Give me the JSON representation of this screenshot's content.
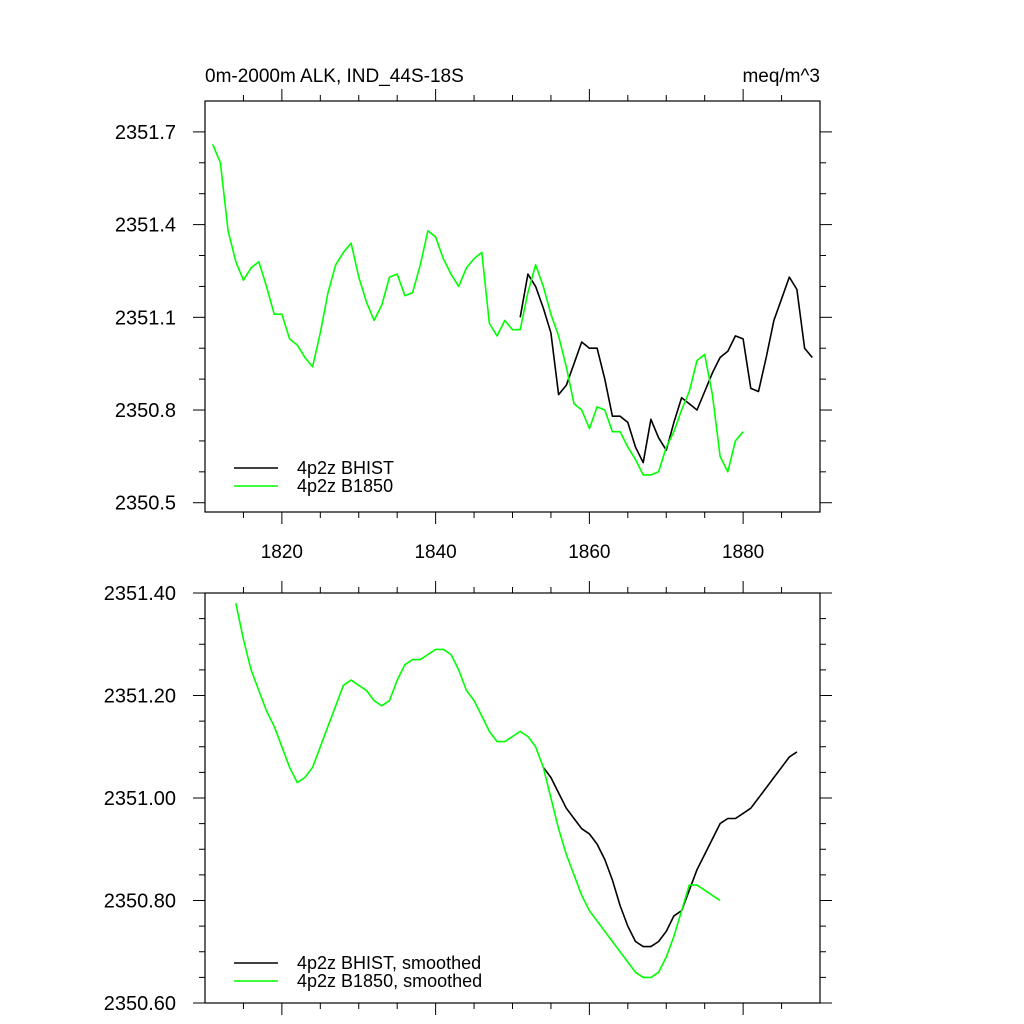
{
  "chart_data": [
    {
      "type": "line",
      "title": "0m-2000m ALK, IND_44S-18S",
      "units": "meq/m^3",
      "xlabel": "",
      "ylabel": "",
      "xlim": [
        1810,
        1890
      ],
      "ylim": [
        2350.47,
        2351.8
      ],
      "x_ticks": [
        1820,
        1840,
        1860,
        1880
      ],
      "y_ticks": [
        2350.5,
        2350.8,
        2351.1,
        2351.4,
        2351.7
      ],
      "y_tick_labels": [
        "2350.5",
        "2350.8",
        "2351.1",
        "2351.4",
        "2351.7"
      ],
      "legend": "bottom-left",
      "series": [
        {
          "name": "4p2z BHIST",
          "color": "#000000",
          "x": [
            1851,
            1852,
            1853,
            1854,
            1855,
            1856,
            1857,
            1858,
            1859,
            1860,
            1861,
            1862,
            1863,
            1864,
            1865,
            1866,
            1867,
            1868,
            1869,
            1870,
            1871,
            1872,
            1873,
            1874,
            1875,
            1876,
            1877,
            1878,
            1879,
            1880,
            1881,
            1882,
            1883,
            1884,
            1885,
            1886,
            1887,
            1888,
            1889
          ],
          "values": [
            2351.1,
            2351.24,
            2351.2,
            2351.13,
            2351.05,
            2350.85,
            2350.88,
            2350.95,
            2351.02,
            2351.0,
            2351.0,
            2350.9,
            2350.78,
            2350.78,
            2350.76,
            2350.68,
            2350.63,
            2350.77,
            2350.71,
            2350.67,
            2350.76,
            2350.84,
            2350.82,
            2350.8,
            2350.86,
            2350.92,
            2350.97,
            2350.99,
            2351.04,
            2351.03,
            2350.87,
            2350.86,
            2350.97,
            2351.09,
            2351.16,
            2351.23,
            2351.19,
            2351.0,
            2350.97
          ]
        },
        {
          "name": "4p2z B1850",
          "color": "#00ff00",
          "x": [
            1811,
            1812,
            1813,
            1814,
            1815,
            1816,
            1817,
            1818,
            1819,
            1820,
            1821,
            1822,
            1823,
            1824,
            1825,
            1826,
            1827,
            1828,
            1829,
            1830,
            1831,
            1832,
            1833,
            1834,
            1835,
            1836,
            1837,
            1838,
            1839,
            1840,
            1841,
            1842,
            1843,
            1844,
            1845,
            1846,
            1847,
            1848,
            1849,
            1850,
            1851,
            1852,
            1853,
            1854,
            1855,
            1856,
            1857,
            1858,
            1859,
            1860,
            1861,
            1862,
            1863,
            1864,
            1865,
            1866,
            1867,
            1868,
            1869,
            1870,
            1871,
            1872,
            1873,
            1874,
            1875,
            1876,
            1877,
            1878,
            1879,
            1880
          ],
          "values": [
            2351.66,
            2351.6,
            2351.38,
            2351.28,
            2351.22,
            2351.26,
            2351.28,
            2351.2,
            2351.11,
            2351.11,
            2351.03,
            2351.01,
            2350.97,
            2350.94,
            2351.05,
            2351.18,
            2351.27,
            2351.31,
            2351.34,
            2351.23,
            2351.15,
            2351.09,
            2351.14,
            2351.23,
            2351.24,
            2351.17,
            2351.18,
            2351.27,
            2351.38,
            2351.36,
            2351.29,
            2351.24,
            2351.2,
            2351.26,
            2351.29,
            2351.31,
            2351.08,
            2351.04,
            2351.09,
            2351.06,
            2351.06,
            2351.18,
            2351.27,
            2351.2,
            2351.11,
            2351.04,
            2350.94,
            2350.82,
            2350.8,
            2350.74,
            2350.81,
            2350.8,
            2350.73,
            2350.73,
            2350.68,
            2350.64,
            2350.59,
            2350.59,
            2350.6,
            2350.68,
            2350.73,
            2350.8,
            2350.86,
            2350.96,
            2350.98,
            2350.85,
            2350.65,
            2350.6,
            2350.7,
            2350.73
          ]
        }
      ]
    },
    {
      "type": "line",
      "title": "",
      "xlabel": "",
      "ylabel": "",
      "xlim": [
        1810,
        1890
      ],
      "ylim": [
        2350.6,
        2351.4
      ],
      "x_ticks": [
        1820,
        1840,
        1860,
        1880
      ],
      "y_ticks": [
        2350.6,
        2350.8,
        2351.0,
        2351.2,
        2351.4
      ],
      "y_tick_labels": [
        "2350.60",
        "2350.80",
        "2351.00",
        "2351.20",
        "2351.40"
      ],
      "legend": "bottom-left",
      "series": [
        {
          "name": "4p2z BHIST, smoothed",
          "color": "#000000",
          "x": [
            1854,
            1855,
            1856,
            1857,
            1858,
            1859,
            1860,
            1861,
            1862,
            1863,
            1864,
            1865,
            1866,
            1867,
            1868,
            1869,
            1870,
            1871,
            1872,
            1873,
            1874,
            1875,
            1876,
            1877,
            1878,
            1879,
            1880,
            1881,
            1882,
            1883,
            1884,
            1885,
            1886,
            1887
          ],
          "values": [
            2351.06,
            2351.04,
            2351.01,
            2350.98,
            2350.96,
            2350.94,
            2350.93,
            2350.91,
            2350.88,
            2350.84,
            2350.79,
            2350.75,
            2350.72,
            2350.71,
            2350.71,
            2350.72,
            2350.74,
            2350.77,
            2350.78,
            2350.82,
            2350.86,
            2350.89,
            2350.92,
            2350.95,
            2350.96,
            2350.96,
            2350.97,
            2350.98,
            2351.0,
            2351.02,
            2351.04,
            2351.06,
            2351.08,
            2351.09
          ]
        },
        {
          "name": "4p2z B1850, smoothed",
          "color": "#00ff00",
          "x": [
            1814,
            1815,
            1816,
            1817,
            1818,
            1819,
            1820,
            1821,
            1822,
            1823,
            1824,
            1825,
            1826,
            1827,
            1828,
            1829,
            1830,
            1831,
            1832,
            1833,
            1834,
            1835,
            1836,
            1837,
            1838,
            1839,
            1840,
            1841,
            1842,
            1843,
            1844,
            1845,
            1846,
            1847,
            1848,
            1849,
            1850,
            1851,
            1852,
            1853,
            1854,
            1855,
            1856,
            1857,
            1858,
            1859,
            1860,
            1861,
            1862,
            1863,
            1864,
            1865,
            1866,
            1867,
            1868,
            1869,
            1870,
            1871,
            1872,
            1873,
            1874,
            1875,
            1876,
            1877
          ],
          "values": [
            2351.38,
            2351.31,
            2351.25,
            2351.21,
            2351.17,
            2351.14,
            2351.1,
            2351.06,
            2351.03,
            2351.04,
            2351.06,
            2351.1,
            2351.14,
            2351.18,
            2351.22,
            2351.23,
            2351.22,
            2351.21,
            2351.19,
            2351.18,
            2351.19,
            2351.23,
            2351.26,
            2351.27,
            2351.27,
            2351.28,
            2351.29,
            2351.29,
            2351.28,
            2351.25,
            2351.21,
            2351.19,
            2351.16,
            2351.13,
            2351.11,
            2351.11,
            2351.12,
            2351.13,
            2351.12,
            2351.1,
            2351.06,
            2351.0,
            2350.94,
            2350.89,
            2350.85,
            2350.81,
            2350.78,
            2350.76,
            2350.74,
            2350.72,
            2350.7,
            2350.68,
            2350.66,
            2350.65,
            2350.65,
            2350.66,
            2350.69,
            2350.73,
            2350.78,
            2350.83,
            2350.83,
            2350.82,
            2350.81,
            2350.8
          ]
        }
      ]
    }
  ]
}
